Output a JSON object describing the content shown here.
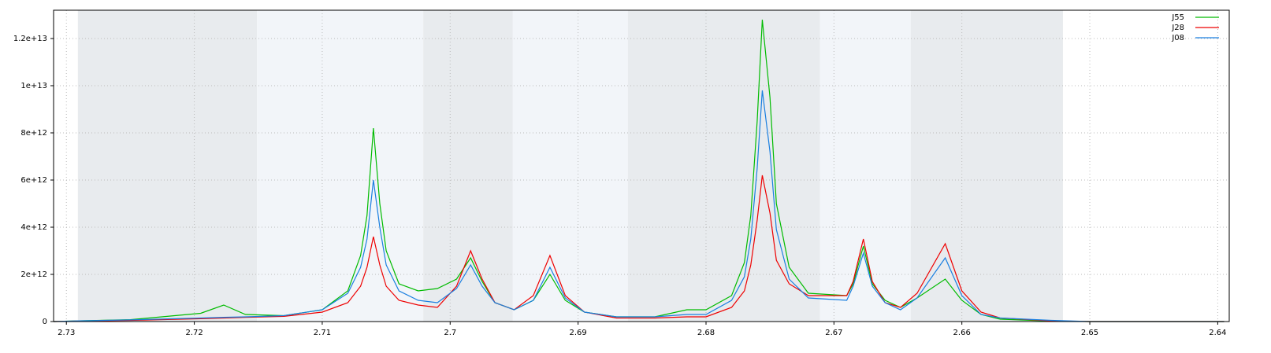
{
  "chart_data": {
    "type": "line",
    "xlim": [
      2.731,
      2.6391
    ],
    "ylim": [
      0,
      13200000000000.0
    ],
    "xticks": [
      2.73,
      2.72,
      2.71,
      2.7,
      2.69,
      2.68,
      2.67,
      2.66,
      2.65,
      2.64
    ],
    "yticks": [
      0,
      {
        "value": 2000000000000.0,
        "label": "2e+12"
      },
      {
        "value": 4000000000000.0,
        "label": "4e+12"
      },
      {
        "value": 6000000000000.0,
        "label": "6e+12"
      },
      {
        "value": 8000000000000.0,
        "label": "8e+12"
      },
      {
        "value": 10000000000000.0,
        "label": "1e+13"
      },
      {
        "value": 12000000000000.0,
        "label": "1.2e+13"
      }
    ],
    "grid": true,
    "legend": "top-right",
    "bands": [
      {
        "from": 2.7291,
        "to": 2.7151,
        "color": "#e8ebee"
      },
      {
        "from": 2.7151,
        "to": 2.7021,
        "color": "#f2f5f9"
      },
      {
        "from": 2.7021,
        "to": 2.6951,
        "color": "#e8ebee"
      },
      {
        "from": 2.6951,
        "to": 2.6861,
        "color": "#f2f5f9"
      },
      {
        "from": 2.6861,
        "to": 2.6711,
        "color": "#e8ebee"
      },
      {
        "from": 2.6711,
        "to": 2.664,
        "color": "#f2f5f9"
      },
      {
        "from": 2.664,
        "to": 2.6521,
        "color": "#e8ebee"
      }
    ],
    "x": [
      2.731,
      2.729,
      2.725,
      2.7195,
      2.7177,
      2.716,
      2.713,
      2.71,
      2.708,
      2.707,
      2.7065,
      2.706,
      2.7055,
      2.705,
      2.704,
      2.7025,
      2.701,
      2.6995,
      2.6984,
      2.6975,
      2.6965,
      2.695,
      2.6935,
      2.6922,
      2.691,
      2.6895,
      2.687,
      2.684,
      2.6815,
      2.68,
      2.678,
      2.677,
      2.6765,
      2.676,
      2.6756,
      2.675,
      2.6745,
      2.6735,
      2.672,
      2.669,
      2.6685,
      2.6677,
      2.667,
      2.666,
      2.6648,
      2.6635,
      2.6613,
      2.66,
      2.6585,
      2.657,
      2.653,
      2.65,
      2.6395
    ],
    "series": [
      {
        "name": "J55",
        "color": "#00bb00",
        "values": [
          0,
          30000000000.0,
          80000000000.0,
          350000000000.0,
          700000000000.0,
          300000000000.0,
          250000000000.0,
          500000000000.0,
          1300000000000.0,
          2800000000000.0,
          4500000000000.0,
          8200000000000.0,
          5000000000000.0,
          3000000000000.0,
          1600000000000.0,
          1300000000000.0,
          1400000000000.0,
          1800000000000.0,
          2700000000000.0,
          1700000000000.0,
          800000000000.0,
          500000000000.0,
          900000000000.0,
          2000000000000.0,
          900000000000.0,
          400000000000.0,
          200000000000.0,
          200000000000.0,
          500000000000.0,
          500000000000.0,
          1100000000000.0,
          2500000000000.0,
          4500000000000.0,
          8500000000000.0,
          12800000000000.0,
          9500000000000.0,
          5000000000000.0,
          2300000000000.0,
          1200000000000.0,
          1100000000000.0,
          1600000000000.0,
          3200000000000.0,
          1600000000000.0,
          900000000000.0,
          600000000000.0,
          1000000000000.0,
          1800000000000.0,
          900000000000.0,
          300000000000.0,
          100000000000.0,
          20000000000.0,
          0,
          0
        ]
      },
      {
        "name": "J28",
        "color": "#ee0000",
        "values": [
          0,
          20000000000.0,
          50000000000.0,
          120000000000.0,
          150000000000.0,
          180000000000.0,
          220000000000.0,
          400000000000.0,
          800000000000.0,
          1500000000000.0,
          2300000000000.0,
          3600000000000.0,
          2400000000000.0,
          1500000000000.0,
          900000000000.0,
          700000000000.0,
          600000000000.0,
          1500000000000.0,
          3000000000000.0,
          1800000000000.0,
          800000000000.0,
          500000000000.0,
          1100000000000.0,
          2800000000000.0,
          1100000000000.0,
          400000000000.0,
          150000000000.0,
          150000000000.0,
          200000000000.0,
          200000000000.0,
          600000000000.0,
          1300000000000.0,
          2400000000000.0,
          4300000000000.0,
          6200000000000.0,
          4600000000000.0,
          2600000000000.0,
          1600000000000.0,
          1100000000000.0,
          1100000000000.0,
          1700000000000.0,
          3500000000000.0,
          1700000000000.0,
          800000000000.0,
          600000000000.0,
          1200000000000.0,
          3300000000000.0,
          1300000000000.0,
          400000000000.0,
          150000000000.0,
          30000000000.0,
          0,
          0
        ]
      },
      {
        "name": "J08",
        "color": "#1a7fe0",
        "values": [
          0,
          30000000000.0,
          70000000000.0,
          150000000000.0,
          180000000000.0,
          200000000000.0,
          250000000000.0,
          500000000000.0,
          1200000000000.0,
          2300000000000.0,
          3500000000000.0,
          6000000000000.0,
          4000000000000.0,
          2400000000000.0,
          1300000000000.0,
          900000000000.0,
          800000000000.0,
          1400000000000.0,
          2400000000000.0,
          1500000000000.0,
          800000000000.0,
          500000000000.0,
          900000000000.0,
          2300000000000.0,
          1000000000000.0,
          400000000000.0,
          200000000000.0,
          200000000000.0,
          300000000000.0,
          300000000000.0,
          900000000000.0,
          1900000000000.0,
          3500000000000.0,
          6500000000000.0,
          9800000000000.0,
          7200000000000.0,
          3900000000000.0,
          1800000000000.0,
          1000000000000.0,
          900000000000.0,
          1500000000000.0,
          2900000000000.0,
          1500000000000.0,
          800000000000.0,
          500000000000.0,
          1000000000000.0,
          2700000000000.0,
          1100000000000.0,
          300000000000.0,
          150000000000.0,
          50000000000.0,
          0,
          0
        ]
      }
    ]
  }
}
